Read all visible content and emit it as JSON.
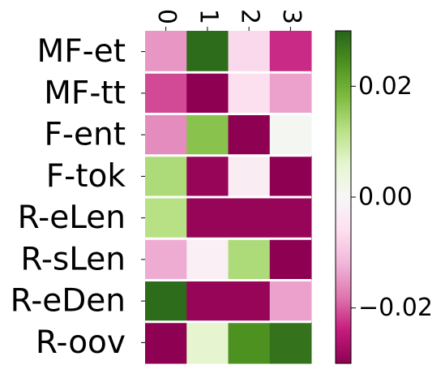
{
  "chart_data": {
    "type": "heatmap",
    "columns": [
      "0",
      "1",
      "2",
      "3"
    ],
    "rows": [
      "MF-et",
      "MF-tt",
      "F-ent",
      "F-tok",
      "R-eLen",
      "R-sLen",
      "R-eDen",
      "R-oov"
    ],
    "values": [
      [
        -0.015,
        0.029,
        -0.007,
        -0.023
      ],
      [
        -0.021,
        -0.03,
        -0.006,
        -0.014
      ],
      [
        -0.016,
        0.017,
        -0.03,
        0.001
      ],
      [
        0.013,
        -0.029,
        -0.003,
        -0.03
      ],
      [
        0.012,
        -0.029,
        -0.029,
        -0.029
      ],
      [
        -0.013,
        -0.002,
        0.013,
        -0.03
      ],
      [
        0.029,
        -0.029,
        -0.029,
        -0.014
      ],
      [
        -0.03,
        0.006,
        0.024,
        0.028
      ]
    ],
    "colormap": "PiYG",
    "vmin": -0.03,
    "vmax": 0.03,
    "colorbar_ticks": [
      0.02,
      0.0,
      -0.02
    ],
    "colorbar_tick_labels": [
      "0.02",
      "0.00",
      "−0.02"
    ],
    "colorbar_stops": [
      "#8e0152",
      "#c51b7d",
      "#de77ae",
      "#f1b6da",
      "#fde0ef",
      "#f7f7f7",
      "#e6f5d0",
      "#b8e186",
      "#7fbc41",
      "#4d9221",
      "#276419"
    ],
    "row_gap_color": "#ffffff"
  }
}
